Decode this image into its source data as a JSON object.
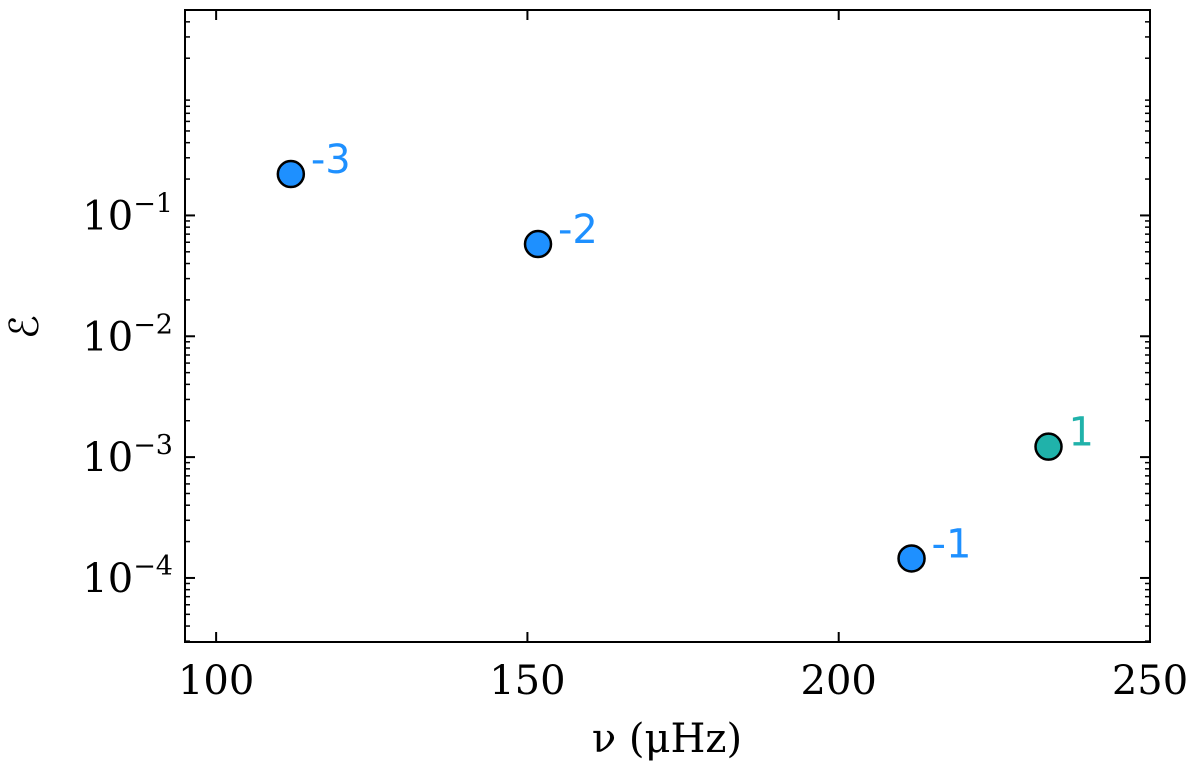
{
  "chart_data": {
    "type": "scatter",
    "xlabel": "ν (μHz)",
    "ylabel": "ℰ",
    "xlim": [
      95,
      250
    ],
    "ylim_log10": [
      -4.53,
      0.7
    ],
    "y_scale": "log",
    "x_ticks": [
      {
        "value": 100,
        "label": "100"
      },
      {
        "value": 150,
        "label": "150"
      },
      {
        "value": 200,
        "label": "200"
      },
      {
        "value": 250,
        "label": "250"
      }
    ],
    "y_ticks": [
      {
        "exponent": -1,
        "base": "10",
        "sup": "−1"
      },
      {
        "exponent": -2,
        "base": "10",
        "sup": "−2"
      },
      {
        "exponent": -3,
        "base": "10",
        "sup": "−3"
      },
      {
        "exponent": -4,
        "base": "10",
        "sup": "−4"
      }
    ],
    "points": [
      {
        "x": 112.0,
        "y": 0.22,
        "label": "-3",
        "color": "#1e90ff"
      },
      {
        "x": 151.7,
        "y": 0.058,
        "label": "-2",
        "color": "#1e90ff"
      },
      {
        "x": 211.7,
        "y": 0.000145,
        "label": "-1",
        "color": "#1e90ff"
      },
      {
        "x": 233.7,
        "y": 0.00122,
        "label": "1",
        "color": "#20b2aa"
      }
    ],
    "grid": false
  }
}
